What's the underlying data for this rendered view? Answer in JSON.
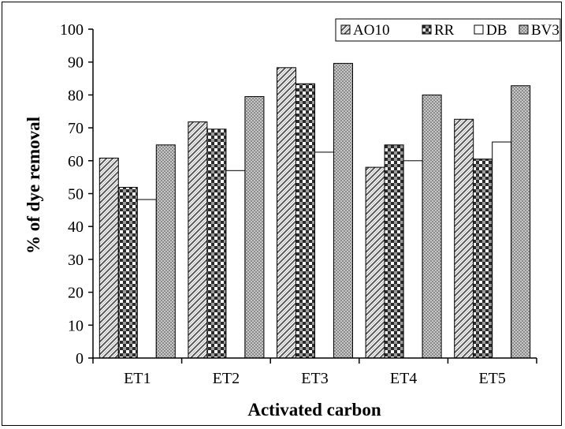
{
  "chart_data": {
    "type": "bar",
    "categories": [
      "ET1",
      "ET2",
      "ET3",
      "ET4",
      "ET5"
    ],
    "series": [
      {
        "name": "AO10",
        "values": [
          60.8,
          71.8,
          88.3,
          58.0,
          72.6
        ],
        "pattern": "diag",
        "color": "#555555"
      },
      {
        "name": "RR",
        "values": [
          51.9,
          69.6,
          83.4,
          64.8,
          60.5
        ],
        "pattern": "check",
        "color": "#2b2b2b"
      },
      {
        "name": "DB",
        "values": [
          48.2,
          57.0,
          62.6,
          60.0,
          65.7
        ],
        "pattern": "plain",
        "color": "#ffffff"
      },
      {
        "name": "BV3",
        "values": [
          64.8,
          79.5,
          89.6,
          80.0,
          82.8
        ],
        "pattern": "dots",
        "color": "#a8a8a8"
      }
    ],
    "yticks": [
      "0",
      "10",
      "20",
      "30",
      "40",
      "50",
      "60",
      "70",
      "80",
      "90",
      "100"
    ],
    "ylim": [
      0,
      100
    ],
    "xlabel": "Activated carbon",
    "ylabel": "% of dye removal",
    "legend_position": "top-right",
    "grid": false
  }
}
